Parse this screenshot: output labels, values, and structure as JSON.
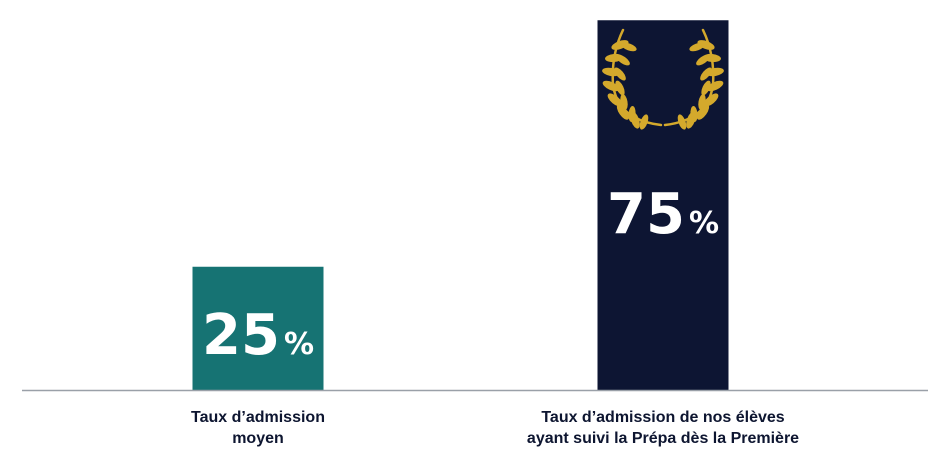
{
  "chart_data": {
    "type": "bar",
    "categories": [
      "Taux d’admission\nmoyen",
      "Taux d’admission de nos élèves\nayant suivi la Prépa dès la Première"
    ],
    "values": [
      25,
      75
    ],
    "value_labels": [
      "25",
      "75"
    ],
    "value_unit": "%",
    "colors": [
      "#167373",
      "#0d1533"
    ],
    "ylim": [
      0,
      100
    ],
    "axis_color": "#9aa0a8",
    "label_color": "#0d1530",
    "badge": {
      "icon": "laurel-wreath-icon",
      "bar_index": 1,
      "color": "#d4a92c"
    },
    "title": "",
    "xlabel": "",
    "ylabel": ""
  }
}
